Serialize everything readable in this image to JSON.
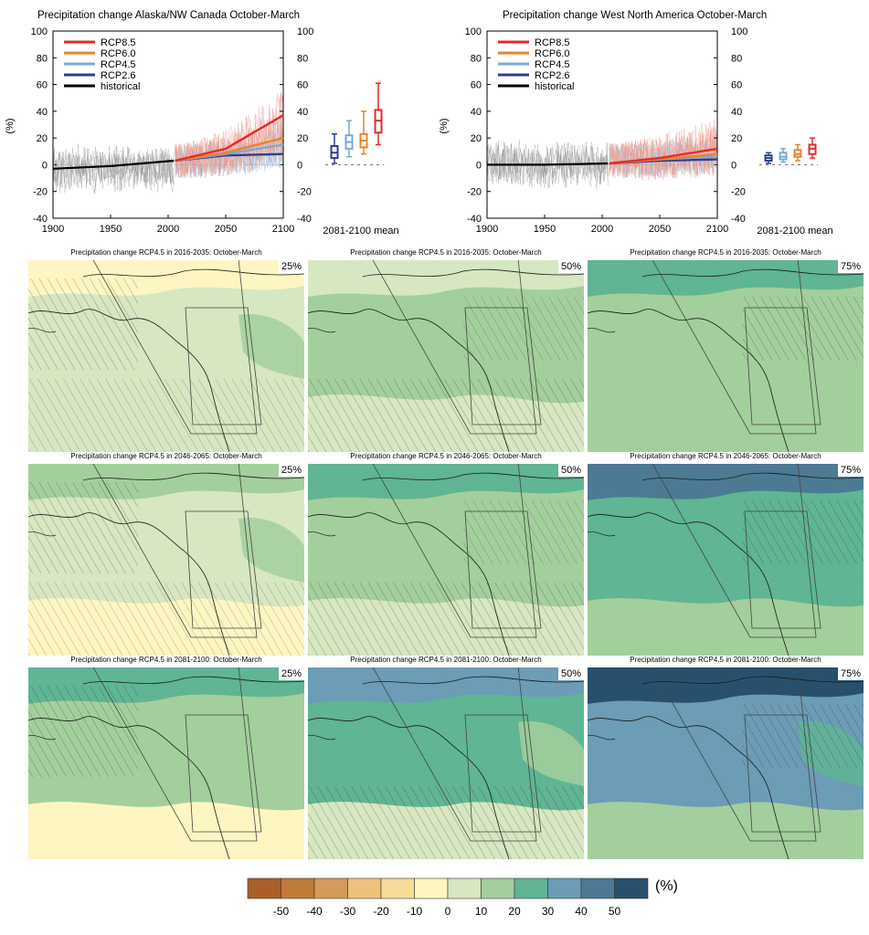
{
  "timeseries": [
    {
      "title": "Precipitation change Alaska/NW Canada October-March",
      "ylabel": "(%)",
      "ylim": [
        -40,
        100
      ],
      "yticks": [
        "100",
        "80",
        "60",
        "40",
        "20",
        "0",
        "-20",
        "-40"
      ],
      "xticks": [
        "1900",
        "1950",
        "2000",
        "2050",
        "2100"
      ],
      "xlim": [
        1900,
        2100
      ],
      "mean_label": "2081-2100 mean",
      "legend": [
        "RCP8.5",
        "RCP6.0",
        "RCP4.5",
        "RCP2.6",
        "historical"
      ],
      "hist_trend": [
        [
          1900,
          -3
        ],
        [
          1950,
          -1
        ],
        [
          2005,
          3
        ]
      ],
      "proj_mean": {
        "RCP2.6": [
          [
            2006,
            3
          ],
          [
            2050,
            7
          ],
          [
            2100,
            8
          ]
        ],
        "RCP4.5": [
          [
            2006,
            3
          ],
          [
            2050,
            8
          ],
          [
            2100,
            15
          ]
        ],
        "RCP6.0": [
          [
            2006,
            3
          ],
          [
            2050,
            9
          ],
          [
            2100,
            20
          ]
        ],
        "RCP8.5": [
          [
            2006,
            3
          ],
          [
            2050,
            12
          ],
          [
            2100,
            37
          ]
        ]
      },
      "boxes": [
        {
          "series": "RCP2.6",
          "min": 1,
          "q1": 5,
          "median": 9,
          "q3": 14,
          "max": 23
        },
        {
          "series": "RCP4.5",
          "min": 6,
          "q1": 12,
          "median": 17,
          "q3": 22,
          "max": 33
        },
        {
          "series": "RCP6.0",
          "min": 8,
          "q1": 13,
          "median": 18,
          "q3": 23,
          "max": 40
        },
        {
          "series": "RCP8.5",
          "min": 15,
          "q1": 24,
          "median": 33,
          "q3": 41,
          "max": 61
        }
      ]
    },
    {
      "title": "Precipitation change West North America October-March",
      "ylabel": "(%)",
      "ylim": [
        -40,
        100
      ],
      "yticks": [
        "100",
        "80",
        "60",
        "40",
        "20",
        "0",
        "-20",
        "-40"
      ],
      "xticks": [
        "1900",
        "1950",
        "2000",
        "2050",
        "2100"
      ],
      "xlim": [
        1900,
        2100
      ],
      "mean_label": "2081-2100 mean",
      "legend": [
        "RCP8.5",
        "RCP6.0",
        "RCP4.5",
        "RCP2.6",
        "historical"
      ],
      "hist_trend": [
        [
          1900,
          0
        ],
        [
          1950,
          0
        ],
        [
          2005,
          1
        ]
      ],
      "proj_mean": {
        "RCP2.6": [
          [
            2006,
            1
          ],
          [
            2050,
            3
          ],
          [
            2100,
            4
          ]
        ],
        "RCP4.5": [
          [
            2006,
            1
          ],
          [
            2050,
            4
          ],
          [
            2100,
            6
          ]
        ],
        "RCP6.0": [
          [
            2006,
            1
          ],
          [
            2050,
            4
          ],
          [
            2100,
            8
          ]
        ],
        "RCP8.5": [
          [
            2006,
            1
          ],
          [
            2050,
            5
          ],
          [
            2100,
            12
          ]
        ]
      },
      "boxes": [
        {
          "series": "RCP2.6",
          "min": 1,
          "q1": 3,
          "median": 5,
          "q3": 7,
          "max": 9
        },
        {
          "series": "RCP4.5",
          "min": 2,
          "q1": 4,
          "median": 6,
          "q3": 9,
          "max": 12
        },
        {
          "series": "RCP6.0",
          "min": 3,
          "q1": 6,
          "median": 8,
          "q3": 11,
          "max": 15
        },
        {
          "series": "RCP8.5",
          "min": 5,
          "q1": 8,
          "median": 12,
          "q3": 15,
          "max": 20
        }
      ]
    }
  ],
  "series_colors": {
    "RCP8.5": "#e22b2b",
    "RCP6.0": "#e8822e",
    "RCP4.5": "#78a9d6",
    "RCP2.6": "#2c3f8f",
    "historical": "#000000"
  },
  "maps": [
    {
      "title": "Precipitation change RCP4.5 in 2016-2035: October-March",
      "percentile": "25%",
      "change_levels": [
        -10,
        0,
        0,
        10
      ]
    },
    {
      "title": "Precipitation change RCP4.5 in 2016-2035: October-March",
      "percentile": "50%",
      "change_levels": [
        0,
        10,
        0,
        10
      ]
    },
    {
      "title": "Precipitation change RCP4.5 in 2016-2035: October-March",
      "percentile": "75%",
      "change_levels": [
        20,
        10,
        10,
        10
      ]
    },
    {
      "title": "Precipitation change RCP4.5 in 2046-2065: October-March",
      "percentile": "25%",
      "change_levels": [
        10,
        0,
        -10,
        10
      ]
    },
    {
      "title": "Precipitation change RCP4.5 in 2046-2065: October-March",
      "percentile": "50%",
      "change_levels": [
        20,
        10,
        0,
        10
      ]
    },
    {
      "title": "Precipitation change RCP4.5 in 2046-2065: October-March",
      "percentile": "75%",
      "change_levels": [
        40,
        20,
        10,
        20
      ]
    },
    {
      "title": "Precipitation change RCP4.5 in 2081-2100: October-March",
      "percentile": "25%",
      "change_levels": [
        20,
        10,
        -10,
        10
      ]
    },
    {
      "title": "Precipitation change RCP4.5 in 2081-2100: October-March",
      "percentile": "50%",
      "change_levels": [
        30,
        20,
        0,
        10
      ]
    },
    {
      "title": "Precipitation change RCP4.5 in 2081-2100: October-March",
      "percentile": "75%",
      "change_levels": [
        50,
        30,
        10,
        20
      ]
    }
  ],
  "colorbar": {
    "unit": "(%)",
    "labels": [
      "-50",
      "-40",
      "-30",
      "-20",
      "-10",
      "0",
      "10",
      "20",
      "30",
      "40",
      "50"
    ],
    "colors": [
      "#a95f26",
      "#c07a39",
      "#d69a5a",
      "#edc27c",
      "#f7dc98",
      "#fdf6c2",
      "#d7e7c1",
      "#a3cf9c",
      "#5fb594",
      "#6c9cb6",
      "#4c7a94",
      "#28506d"
    ]
  }
}
